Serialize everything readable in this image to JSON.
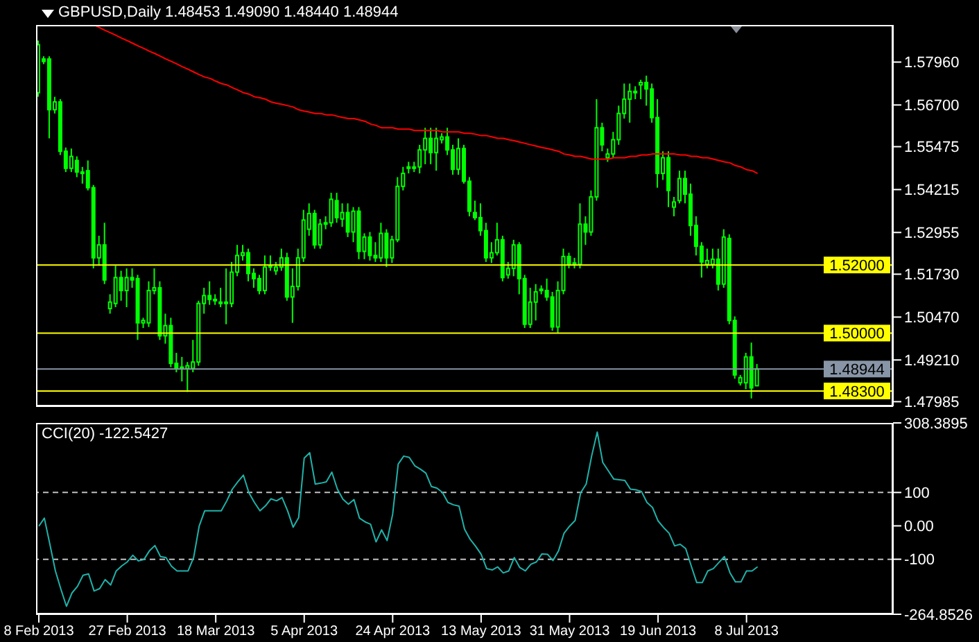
{
  "chart_data": [
    {
      "type": "candlestick",
      "title": "GBPUSD,Daily 1.48453 1.49090 1.48440 1.48944",
      "color": "#00ff00",
      "categories": [
        null,
        null,
        null,
        null,
        null,
        null,
        null,
        null,
        null,
        null,
        null,
        null,
        null,
        null,
        null,
        null,
        null,
        null,
        null,
        null,
        null,
        null,
        null,
        null,
        null,
        null,
        null,
        null,
        null,
        null,
        null,
        null,
        null,
        null,
        null,
        null,
        null,
        null,
        null,
        null,
        null,
        null,
        null,
        null,
        null,
        null,
        null,
        null,
        null,
        null,
        null,
        null,
        null,
        null,
        null,
        null,
        null,
        null,
        null,
        null,
        null,
        null,
        null,
        null,
        null,
        null,
        null,
        null,
        null,
        null,
        null,
        null,
        null,
        null,
        null,
        null,
        null,
        null,
        null,
        null,
        null,
        null,
        null,
        null,
        null,
        null,
        null,
        null,
        null,
        null,
        null,
        null,
        null,
        null,
        null,
        null,
        null,
        null,
        null,
        null,
        null,
        null,
        null,
        null,
        null,
        null,
        null,
        null,
        null,
        null,
        null,
        null,
        null,
        null,
        null,
        null,
        null,
        null,
        null,
        null,
        null,
        null,
        null,
        null,
        null,
        null,
        null,
        null,
        null,
        null,
        null
      ],
      "ohlc": [
        [
          1.5706,
          1.5859,
          1.5694,
          1.5847
        ],
        [
          1.5805,
          1.5813,
          1.579,
          1.5798
        ],
        [
          1.5805,
          1.5813,
          1.5572,
          1.5656
        ],
        [
          1.5656,
          1.5694,
          1.5645,
          1.5679
        ],
        [
          1.5679,
          1.5687,
          1.5523,
          1.5534
        ],
        [
          1.5534,
          1.5545,
          1.5473,
          1.5484
        ],
        [
          1.5484,
          1.5542,
          1.5473,
          1.5519
        ],
        [
          1.5507,
          1.5519,
          1.5458,
          1.5473
        ],
        [
          1.5473,
          1.5488,
          1.5439,
          1.5473
        ],
        [
          1.5477,
          1.5507,
          1.5419,
          1.5427
        ],
        [
          1.5427,
          1.5435,
          1.519,
          1.5221
        ],
        [
          1.5221,
          1.5286,
          1.5198,
          1.5259
        ],
        [
          1.5259,
          1.5324,
          1.5144,
          1.5156
        ],
        [
          1.5072,
          1.5114,
          1.5057,
          1.5091
        ],
        [
          1.5087,
          1.5198,
          1.5076,
          1.5163
        ],
        [
          1.5163,
          1.5183,
          1.5095,
          1.5125
        ],
        [
          1.5125,
          1.519,
          1.5076,
          1.5163
        ],
        [
          1.5163,
          1.519,
          1.5133,
          1.5156
        ],
        [
          1.516,
          1.5171,
          1.498,
          1.503
        ],
        [
          1.503,
          1.5045,
          1.5015,
          1.5037
        ],
        [
          1.503,
          1.5152,
          1.5018,
          1.5125
        ],
        [
          1.5125,
          1.519,
          1.5114,
          1.5133
        ],
        [
          1.5133,
          1.5152,
          1.498,
          1.4992
        ],
        [
          1.4992,
          1.5057,
          1.4969,
          1.5022
        ],
        [
          1.5022,
          1.5045,
          1.49,
          1.4911
        ],
        [
          1.4911,
          1.4942,
          1.4885,
          1.4896
        ],
        [
          1.49,
          1.493,
          1.4858,
          1.49
        ],
        [
          1.4896,
          1.4915,
          1.4827,
          1.4904
        ],
        [
          1.4896,
          1.498,
          1.4885,
          1.4915
        ],
        [
          1.4915,
          1.5095,
          1.4904,
          1.5087
        ],
        [
          1.5087,
          1.5133,
          1.5057,
          1.511
        ],
        [
          1.511,
          1.5152,
          1.5083,
          1.5099
        ],
        [
          1.5099,
          1.5114,
          1.5083,
          1.5099
        ],
        [
          1.5091,
          1.5133,
          1.5076,
          1.5091
        ],
        [
          1.5091,
          1.519,
          1.5026,
          1.5091
        ],
        [
          1.5087,
          1.5209,
          1.5076,
          1.5179
        ],
        [
          1.5179,
          1.5259,
          1.5167,
          1.5228
        ],
        [
          1.5228,
          1.5259,
          1.5213,
          1.5236
        ],
        [
          1.5236,
          1.5248,
          1.5152,
          1.5175
        ],
        [
          1.5175,
          1.519,
          1.5133,
          1.516
        ],
        [
          1.516,
          1.5171,
          1.5114,
          1.5125
        ],
        [
          1.5125,
          1.5228,
          1.5114,
          1.5194
        ],
        [
          1.5198,
          1.5228,
          1.5183,
          1.5198
        ],
        [
          1.5183,
          1.5209,
          1.5171,
          1.5194
        ],
        [
          1.5194,
          1.5248,
          1.5183,
          1.5221
        ],
        [
          1.5221,
          1.5236,
          1.5095,
          1.5106
        ],
        [
          1.5106,
          1.519,
          1.503,
          1.5137
        ],
        [
          1.5137,
          1.5248,
          1.5125,
          1.5221
        ],
        [
          1.5221,
          1.5362,
          1.5209,
          1.5332
        ],
        [
          1.5305,
          1.5381,
          1.5286,
          1.5351
        ],
        [
          1.5351,
          1.5362,
          1.5248,
          1.5259
        ],
        [
          1.5259,
          1.5335,
          1.5248,
          1.532
        ],
        [
          1.5324,
          1.5343,
          1.5305,
          1.5324
        ],
        [
          1.5324,
          1.5412,
          1.5312,
          1.5393
        ],
        [
          1.5389,
          1.5412,
          1.5324,
          1.5339
        ],
        [
          1.5335,
          1.5381,
          1.5312,
          1.5354
        ],
        [
          1.5354,
          1.5381,
          1.5282,
          1.5297
        ],
        [
          1.5297,
          1.537,
          1.5267,
          1.5358
        ],
        [
          1.5358,
          1.537,
          1.5217,
          1.524
        ],
        [
          1.524,
          1.5293,
          1.5217,
          1.5282
        ],
        [
          1.5282,
          1.5297,
          1.5213,
          1.5228
        ],
        [
          1.5228,
          1.5267,
          1.5209,
          1.5221
        ],
        [
          1.5221,
          1.5324,
          1.5209,
          1.5293
        ],
        [
          1.5293,
          1.5305,
          1.5194,
          1.5221
        ],
        [
          1.5221,
          1.5286,
          1.5206,
          1.5274
        ],
        [
          1.5274,
          1.5458,
          1.5267,
          1.5431
        ],
        [
          1.5431,
          1.5488,
          1.5419,
          1.5469
        ],
        [
          1.5484,
          1.5503,
          1.5469,
          1.5488
        ],
        [
          1.5488,
          1.5503,
          1.5473,
          1.5488
        ],
        [
          1.5488,
          1.5553,
          1.5469,
          1.5538
        ],
        [
          1.5538,
          1.5603,
          1.5496,
          1.5572
        ],
        [
          1.5572,
          1.5603,
          1.5496,
          1.553
        ],
        [
          1.553,
          1.5603,
          1.5477,
          1.5572
        ],
        [
          1.5568,
          1.5587,
          1.5557,
          1.5576
        ],
        [
          1.5576,
          1.5603,
          1.5523,
          1.5538
        ],
        [
          1.5538,
          1.5553,
          1.5465,
          1.5481
        ],
        [
          1.5481,
          1.5572,
          1.5465,
          1.5542
        ],
        [
          1.5542,
          1.5553,
          1.5439,
          1.5446
        ],
        [
          1.5446,
          1.5458,
          1.5343,
          1.5358
        ],
        [
          1.5354,
          1.5389,
          1.5332,
          1.5339
        ],
        [
          1.5339,
          1.5381,
          1.5286,
          1.5301
        ],
        [
          1.5301,
          1.5324,
          1.5209,
          1.5221
        ],
        [
          1.5221,
          1.5267,
          1.5206,
          1.5236
        ],
        [
          1.5236,
          1.5324,
          1.5228,
          1.5274
        ],
        [
          1.5274,
          1.5286,
          1.5152,
          1.5163
        ],
        [
          1.5171,
          1.5209,
          1.516,
          1.519
        ],
        [
          1.519,
          1.5274,
          1.5167,
          1.5259
        ],
        [
          1.5259,
          1.5267,
          1.5114,
          1.516
        ],
        [
          1.516,
          1.5171,
          1.5015,
          1.5026
        ],
        [
          1.5026,
          1.5133,
          1.5015,
          1.5091
        ],
        [
          1.5091,
          1.5144,
          1.5037,
          1.5121
        ],
        [
          1.5125,
          1.514,
          1.5114,
          1.5129
        ],
        [
          1.5125,
          1.516,
          1.5095,
          1.5106
        ],
        [
          1.5106,
          1.5121,
          1.5007,
          1.5018
        ],
        [
          1.5018,
          1.5152,
          1.4999,
          1.5125
        ],
        [
          1.5125,
          1.5248,
          1.5114,
          1.5225
        ],
        [
          1.5225,
          1.5236,
          1.519,
          1.5202
        ],
        [
          1.5206,
          1.5221,
          1.519,
          1.5206
        ],
        [
          1.5202,
          1.5381,
          1.519,
          1.532
        ],
        [
          1.532,
          1.5343,
          1.5259,
          1.5297
        ],
        [
          1.5297,
          1.5419,
          1.5286,
          1.54
        ],
        [
          1.54,
          1.5687,
          1.5389,
          1.5603
        ],
        [
          1.5603,
          1.5618,
          1.5534,
          1.5553
        ],
        [
          1.5515,
          1.5542,
          1.5503,
          1.5526
        ],
        [
          1.5526,
          1.5591,
          1.5515,
          1.5568
        ],
        [
          1.5568,
          1.5668,
          1.5553,
          1.5645
        ],
        [
          1.5645,
          1.5733,
          1.563,
          1.5687
        ],
        [
          1.5687,
          1.5733,
          1.5618,
          1.571
        ],
        [
          1.571,
          1.5725,
          1.5687,
          1.571
        ],
        [
          1.5729,
          1.5744,
          1.5687,
          1.5736
        ],
        [
          1.5736,
          1.5756,
          1.5668,
          1.5717
        ],
        [
          1.5717,
          1.5733,
          1.5618,
          1.5633
        ],
        [
          1.5633,
          1.5687,
          1.5427,
          1.5469
        ],
        [
          1.5469,
          1.5534,
          1.545,
          1.5515
        ],
        [
          1.5515,
          1.5534,
          1.537,
          1.5419
        ],
        [
          1.537,
          1.54,
          1.5343,
          1.5385
        ],
        [
          1.5389,
          1.5477,
          1.5381,
          1.5454
        ],
        [
          1.5454,
          1.5477,
          1.5381,
          1.5408
        ],
        [
          1.5408,
          1.5439,
          1.5286,
          1.5316
        ],
        [
          1.5316,
          1.5343,
          1.5228,
          1.5255
        ],
        [
          1.5255,
          1.5267,
          1.5163,
          1.5209
        ],
        [
          1.5202,
          1.5248,
          1.519,
          1.5213
        ],
        [
          1.5202,
          1.5248,
          1.519,
          1.5217
        ],
        [
          1.5217,
          1.5248,
          1.5125,
          1.5144
        ],
        [
          1.5144,
          1.5305,
          1.5133,
          1.5282
        ],
        [
          1.5278,
          1.529,
          1.5026,
          1.5037
        ],
        [
          1.5037,
          1.5049,
          1.4866,
          1.4877
        ],
        [
          1.4854,
          1.4877,
          1.4846,
          1.4869
        ],
        [
          1.4854,
          1.4942,
          1.4835,
          1.493
        ],
        [
          1.493,
          1.4972,
          1.4808,
          1.4839
        ],
        [
          1.48453,
          1.4909,
          1.4844,
          1.48944
        ]
      ],
      "series": [
        {
          "type": "line",
          "color": "#ff0000",
          "values": [
            null,
            null,
            null,
            null,
            null,
            null,
            null,
            null,
            null,
            null,
            1.5905,
            1.5897,
            1.5889,
            1.5882,
            1.5874,
            1.5866,
            1.5859,
            1.5851,
            1.5843,
            1.5836,
            1.5828,
            1.5821,
            1.5813,
            1.5805,
            1.5798,
            1.579,
            1.5782,
            1.5775,
            1.5767,
            1.5759,
            1.5752,
            1.5748,
            1.574,
            1.5733,
            1.5729,
            1.5721,
            1.5714,
            1.5706,
            1.5702,
            1.5694,
            1.5691,
            1.5687,
            1.5679,
            1.5675,
            1.5672,
            1.5668,
            1.5664,
            1.5656,
            1.5652,
            1.5649,
            1.5645,
            1.5645,
            1.5641,
            1.5641,
            1.5637,
            1.5633,
            1.563,
            1.563,
            1.5626,
            1.5622,
            1.5614,
            1.561,
            1.5603,
            1.5603,
            1.5603,
            1.5599,
            1.5599,
            1.5599,
            1.5595,
            1.5595,
            1.5595,
            1.5595,
            1.5595,
            1.5591,
            1.5591,
            1.5591,
            1.5591,
            1.5587,
            1.5587,
            1.5584,
            1.558,
            1.558,
            1.5576,
            1.5572,
            1.5572,
            1.5568,
            1.5565,
            1.5561,
            1.5557,
            1.5553,
            1.5549,
            1.5545,
            1.5542,
            1.5538,
            1.5534,
            1.5526,
            1.5523,
            1.5519,
            1.5519,
            1.5515,
            1.5511,
            1.5511,
            1.5511,
            1.5511,
            1.5515,
            1.5515,
            1.5515,
            1.5519,
            1.5519,
            1.5523,
            1.5523,
            1.5526,
            1.5526,
            1.5526,
            1.5526,
            1.5526,
            1.5523,
            1.5523,
            1.5519,
            1.5519,
            1.5515,
            1.5515,
            1.5511,
            1.5507,
            1.5503,
            1.55,
            1.5492,
            1.5488,
            1.548,
            1.5477,
            1.5469
          ]
        }
      ],
      "ylim": [
        1.4785,
        1.5905
      ],
      "yticks": [
        {
          "value": 1.5796,
          "label": "1.57960"
        },
        {
          "value": 1.567,
          "label": "1.56700"
        },
        {
          "value": 1.55475,
          "label": "1.55475"
        },
        {
          "value": 1.54215,
          "label": "1.54215"
        },
        {
          "value": 1.52955,
          "label": "1.52955"
        },
        {
          "value": 1.5173,
          "label": "1.51730"
        },
        {
          "value": 1.5047,
          "label": "1.50470"
        },
        {
          "value": 1.4921,
          "label": "1.49210"
        },
        {
          "value": 1.47985,
          "label": "1.47985"
        }
      ],
      "ref_lines": [
        {
          "axis": "y",
          "value": 1.52,
          "label": "1.52000",
          "color": "#ffff00"
        },
        {
          "axis": "y",
          "value": 1.5,
          "label": "1.50000",
          "color": "#ffff00"
        },
        {
          "axis": "y",
          "value": 1.483,
          "label": "1.48300",
          "color": "#ffff00"
        },
        {
          "axis": "y",
          "value": 1.48944,
          "label": "1.48944",
          "color": "#8795a6"
        }
      ],
      "tick_labels": "y"
    },
    {
      "type": "line",
      "title": "CCI(20) -122.5427",
      "categories": [
        "8 Feb 2013",
        null,
        null,
        null,
        null,
        null,
        null,
        null,
        null,
        null,
        null,
        null,
        null,
        null,
        null,
        null,
        "27 Feb 2013",
        null,
        null,
        null,
        null,
        null,
        null,
        null,
        null,
        null,
        null,
        null,
        null,
        null,
        null,
        null,
        "18 Mar 2013",
        null,
        null,
        null,
        null,
        null,
        null,
        null,
        null,
        null,
        null,
        null,
        null,
        null,
        null,
        null,
        "5 Apr 2013",
        null,
        null,
        null,
        null,
        null,
        null,
        null,
        null,
        null,
        null,
        null,
        null,
        null,
        null,
        null,
        "24 Apr 2013",
        null,
        null,
        null,
        null,
        null,
        null,
        null,
        null,
        null,
        null,
        null,
        null,
        null,
        null,
        null,
        "13 May 2013",
        null,
        null,
        null,
        null,
        null,
        null,
        null,
        null,
        null,
        null,
        null,
        null,
        null,
        null,
        null,
        "31 May 2013",
        null,
        null,
        null,
        null,
        null,
        null,
        null,
        null,
        null,
        null,
        null,
        null,
        null,
        null,
        null,
        "19 Jun 2013",
        null,
        null,
        null,
        null,
        null,
        null,
        null,
        null,
        null,
        null,
        null,
        null,
        null,
        null,
        null,
        "8 Jul 2013",
        null,
        null
      ],
      "series": [
        {
          "color": "#20b2aa",
          "values": [
            -1,
            23,
            -55,
            -135,
            -190,
            -241,
            -201,
            -181,
            -148,
            -144,
            -195,
            -188,
            -161,
            -177,
            -135,
            -120,
            -108,
            -88,
            -105,
            -101,
            -75,
            -59,
            -92,
            -95,
            -121,
            -135,
            -135,
            -135,
            -95,
            -1,
            45,
            45,
            45,
            45,
            75,
            110,
            132,
            152,
            99,
            70,
            45,
            60,
            81,
            75,
            85,
            45,
            -4,
            25,
            203,
            219,
            125,
            128,
            132,
            161,
            110,
            80,
            65,
            79,
            23,
            12,
            5,
            -48,
            -12,
            -44,
            35,
            185,
            209,
            205,
            180,
            170,
            158,
            118,
            113,
            100,
            70,
            63,
            59,
            -10,
            -40,
            -61,
            -85,
            -128,
            -132,
            -123,
            -141,
            -135,
            -95,
            -125,
            -135,
            -115,
            -108,
            -84,
            -85,
            -104,
            -75,
            -22,
            -1,
            16,
            99,
            125,
            210,
            281,
            190,
            165,
            140,
            138,
            136,
            110,
            108,
            103,
            70,
            55,
            15,
            -5,
            -22,
            -60,
            -55,
            -68,
            -120,
            -170,
            -170,
            -135,
            -128,
            -110,
            -92,
            -140,
            -168,
            -168,
            -135,
            -135,
            -122.5427
          ]
        }
      ],
      "ylim": [
        -264.8526,
        308.3895
      ],
      "yticks": [
        308.3895,
        100,
        {
          "value": 0,
          "label": "0.00"
        },
        -100,
        -264.8526
      ],
      "ref_lines": [
        {
          "axis": "y",
          "value": 100,
          "color": "#c0c0c0",
          "line_style": "dashed"
        },
        {
          "axis": "y",
          "value": -100,
          "color": "#c0c0c0",
          "line_style": "dashed"
        }
      ]
    }
  ]
}
